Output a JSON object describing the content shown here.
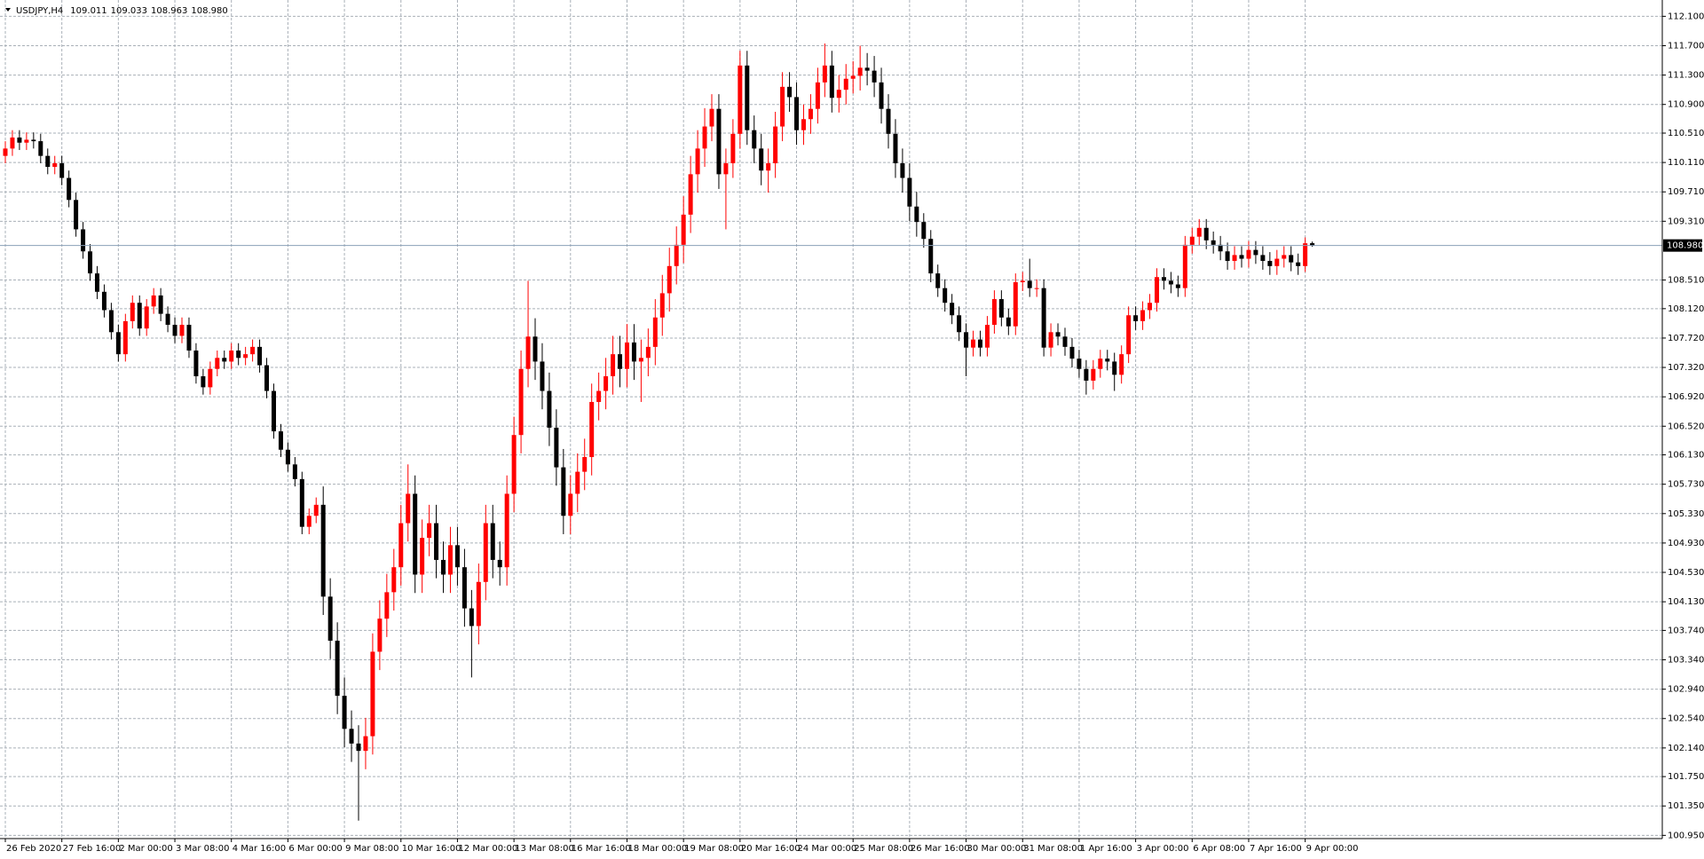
{
  "chart_data": {
    "type": "candlestick",
    "title": "USDJPY,H4",
    "up_color": "#ff0000",
    "down_color": "#000000",
    "grid": true,
    "current_price": {
      "value": 108.98,
      "label": "108.980"
    },
    "current_price_color": "#8aa0b8",
    "ylim": [
      100.906,
      112.322
    ],
    "yticks": [
      {
        "value": 112.1,
        "label": "112.100"
      },
      {
        "value": 111.7,
        "label": "111.700"
      },
      {
        "value": 111.3,
        "label": "111.300"
      },
      {
        "value": 110.9,
        "label": "110.900"
      },
      {
        "value": 110.51,
        "label": "110.510"
      },
      {
        "value": 110.11,
        "label": "110.110"
      },
      {
        "value": 109.71,
        "label": "109.710"
      },
      {
        "value": 109.31,
        "label": "109.310"
      },
      {
        "value": 108.51,
        "label": "108.510"
      },
      {
        "value": 108.12,
        "label": "108.120"
      },
      {
        "value": 107.72,
        "label": "107.720"
      },
      {
        "value": 107.32,
        "label": "107.320"
      },
      {
        "value": 106.92,
        "label": "106.920"
      },
      {
        "value": 106.52,
        "label": "106.520"
      },
      {
        "value": 106.13,
        "label": "106.130"
      },
      {
        "value": 105.73,
        "label": "105.730"
      },
      {
        "value": 105.33,
        "label": "105.330"
      },
      {
        "value": 104.93,
        "label": "104.930"
      },
      {
        "value": 104.53,
        "label": "104.530"
      },
      {
        "value": 104.13,
        "label": "104.130"
      },
      {
        "value": 103.74,
        "label": "103.740"
      },
      {
        "value": 103.34,
        "label": "103.340"
      },
      {
        "value": 102.94,
        "label": "102.940"
      },
      {
        "value": 102.54,
        "label": "102.540"
      },
      {
        "value": 102.14,
        "label": "102.140"
      },
      {
        "value": 101.75,
        "label": "101.750"
      },
      {
        "value": 101.35,
        "label": "101.350"
      },
      {
        "value": 100.95,
        "label": "100.950"
      }
    ],
    "xticks": [
      {
        "value": 0,
        "label": "26 Feb 2020"
      },
      {
        "value": 8,
        "label": "27 Feb 16:00"
      },
      {
        "value": 16,
        "label": "2 Mar 00:00"
      },
      {
        "value": 24,
        "label": "3 Mar 08:00"
      },
      {
        "value": 32,
        "label": "4 Mar 16:00"
      },
      {
        "value": 40,
        "label": "6 Mar 00:00"
      },
      {
        "value": 48,
        "label": "9 Mar 08:00"
      },
      {
        "value": 56,
        "label": "10 Mar 16:00"
      },
      {
        "value": 64,
        "label": "12 Mar 00:00"
      },
      {
        "value": 72,
        "label": "13 Mar 08:00"
      },
      {
        "value": 80,
        "label": "16 Mar 16:00"
      },
      {
        "value": 88,
        "label": "18 Mar 00:00"
      },
      {
        "value": 96,
        "label": "19 Mar 08:00"
      },
      {
        "value": 104,
        "label": "20 Mar 16:00"
      },
      {
        "value": 112,
        "label": "24 Mar 00:00"
      },
      {
        "value": 120,
        "label": "25 Mar 08:00"
      },
      {
        "value": 128,
        "label": "26 Mar 16:00"
      },
      {
        "value": 136,
        "label": "30 Mar 00:00"
      },
      {
        "value": 144,
        "label": "31 Mar 08:00"
      },
      {
        "value": 152,
        "label": "1 Apr 16:00"
      },
      {
        "value": 160,
        "label": "3 Apr 00:00"
      },
      {
        "value": 168,
        "label": "6 Apr 08:00"
      },
      {
        "value": 176,
        "label": "7 Apr 16:00"
      },
      {
        "value": 184,
        "label": "9 Apr 00:00"
      }
    ],
    "open": [
      110.2,
      110.3,
      110.45,
      110.38,
      110.42,
      110.4,
      110.2,
      110.05,
      110.1,
      109.9,
      109.6,
      109.2,
      108.9,
      108.6,
      108.35,
      108.1,
      107.8,
      107.5,
      107.95,
      108.2,
      107.85,
      108.15,
      108.3,
      108.05,
      107.9,
      107.75,
      107.9,
      107.55,
      107.2,
      107.05,
      107.3,
      107.45,
      107.4,
      107.55,
      107.45,
      107.5,
      107.6,
      107.35,
      107.0,
      106.45,
      106.2,
      106.0,
      105.8,
      105.15,
      105.3,
      105.45,
      104.2,
      103.6,
      102.85,
      102.4,
      102.2,
      102.1,
      102.3,
      103.45,
      103.9,
      104.26,
      104.6,
      105.2,
      105.6,
      104.5,
      105.0,
      105.2,
      104.7,
      104.5,
      104.9,
      104.6,
      104.04,
      103.8,
      104.4,
      105.2,
      104.7,
      104.6,
      105.6,
      106.4,
      107.3,
      107.74,
      107.4,
      107.0,
      106.5,
      105.96,
      105.3,
      105.6,
      105.9,
      106.1,
      106.85,
      107.0,
      107.2,
      107.5,
      107.3,
      107.66,
      107.4,
      107.45,
      107.6,
      108.0,
      108.33,
      108.7,
      108.99,
      109.4,
      109.95,
      110.3,
      110.6,
      110.84,
      109.95,
      110.1,
      110.5,
      111.43,
      110.55,
      110.3,
      110.0,
      110.1,
      110.6,
      111.14,
      111.0,
      110.55,
      110.7,
      110.84,
      111.2,
      111.43,
      110.99,
      111.1,
      111.25,
      111.29,
      111.4,
      111.36,
      111.2,
      110.84,
      110.5,
      110.1,
      109.9,
      109.51,
      109.3,
      109.07,
      108.6,
      108.4,
      108.2,
      108.03,
      107.8,
      107.59,
      107.7,
      107.59,
      107.9,
      108.25,
      108.0,
      107.88,
      108.48,
      108.5,
      108.4,
      108.4,
      107.59,
      107.8,
      107.74,
      107.6,
      107.44,
      107.3,
      107.14,
      107.3,
      107.44,
      107.4,
      107.22,
      107.5,
      108.03,
      107.95,
      108.1,
      108.2,
      108.55,
      108.5,
      108.45,
      108.4,
      108.99,
      109.1,
      109.22,
      109.05,
      108.99,
      108.9,
      108.77,
      108.85,
      108.8,
      108.92,
      108.85,
      108.77,
      108.7,
      108.8,
      108.85,
      108.75,
      108.7,
      109.011
    ],
    "high": [
      110.4,
      110.55,
      110.55,
      110.52,
      110.52,
      110.5,
      110.3,
      110.2,
      110.2,
      110.0,
      109.7,
      109.3,
      109.0,
      108.7,
      108.45,
      108.2,
      107.9,
      108.05,
      108.3,
      108.3,
      108.25,
      108.4,
      108.4,
      108.15,
      108.0,
      108.0,
      108.0,
      107.65,
      107.3,
      107.4,
      107.55,
      107.55,
      107.65,
      107.65,
      107.6,
      107.7,
      107.7,
      107.45,
      107.1,
      106.55,
      106.3,
      106.1,
      105.9,
      105.4,
      105.55,
      105.7,
      104.45,
      103.85,
      103.1,
      102.65,
      102.45,
      102.55,
      103.7,
      104.15,
      104.51,
      104.85,
      105.45,
      106.0,
      105.85,
      105.25,
      105.45,
      105.45,
      104.95,
      105.15,
      105.15,
      104.85,
      104.29,
      104.65,
      105.45,
      105.45,
      104.95,
      105.85,
      106.65,
      107.55,
      108.5,
      107.99,
      107.65,
      107.25,
      106.75,
      106.21,
      105.85,
      106.15,
      106.35,
      107.1,
      107.25,
      107.45,
      107.75,
      107.75,
      107.91,
      107.91,
      107.7,
      107.85,
      108.25,
      108.58,
      108.95,
      109.24,
      109.65,
      110.2,
      110.55,
      110.85,
      111.04,
      111.04,
      110.3,
      110.7,
      111.63,
      111.63,
      110.75,
      110.5,
      110.3,
      110.8,
      111.34,
      111.34,
      111.2,
      110.9,
      111.04,
      111.4,
      111.73,
      111.63,
      111.3,
      111.45,
      111.49,
      111.7,
      111.6,
      111.56,
      111.4,
      111.04,
      110.7,
      110.3,
      110.1,
      109.71,
      109.42,
      109.19,
      108.72,
      108.52,
      108.32,
      108.15,
      107.92,
      107.82,
      107.82,
      108.02,
      108.37,
      108.37,
      108.12,
      108.6,
      108.62,
      108.8,
      108.52,
      108.52,
      107.92,
      107.92,
      107.86,
      107.72,
      107.56,
      107.42,
      107.42,
      107.56,
      107.56,
      107.52,
      107.62,
      108.15,
      108.15,
      108.22,
      108.32,
      108.67,
      108.67,
      108.62,
      108.57,
      109.11,
      109.22,
      109.34,
      109.34,
      109.17,
      109.11,
      109.02,
      108.97,
      108.97,
      109.04,
      109.04,
      108.97,
      108.89,
      108.92,
      108.97,
      108.97,
      108.87,
      109.09,
      109.033
    ],
    "low": [
      110.1,
      110.2,
      110.28,
      110.28,
      110.3,
      110.1,
      109.95,
      109.95,
      109.8,
      109.5,
      109.1,
      108.8,
      108.5,
      108.25,
      108.0,
      107.7,
      107.4,
      107.4,
      107.85,
      107.75,
      107.75,
      108.05,
      107.95,
      107.8,
      107.65,
      107.65,
      107.45,
      107.1,
      106.95,
      106.95,
      107.2,
      107.3,
      107.3,
      107.35,
      107.35,
      107.4,
      107.25,
      106.9,
      106.35,
      106.1,
      105.9,
      105.7,
      105.05,
      105.05,
      105.2,
      103.95,
      103.35,
      102.6,
      102.15,
      101.95,
      101.15,
      101.85,
      102.05,
      103.2,
      103.65,
      104.01,
      104.35,
      104.95,
      104.25,
      104.25,
      104.75,
      104.45,
      104.25,
      104.25,
      104.35,
      103.79,
      103.1,
      103.55,
      104.15,
      104.45,
      104.35,
      104.35,
      105.35,
      106.15,
      107.05,
      107.15,
      106.75,
      106.25,
      105.71,
      105.05,
      105.05,
      105.35,
      105.65,
      105.85,
      106.6,
      106.75,
      106.95,
      107.05,
      107.05,
      107.15,
      106.85,
      107.2,
      107.35,
      107.75,
      108.08,
      108.45,
      108.74,
      109.15,
      109.7,
      110.05,
      110.4,
      109.75,
      109.2,
      109.9,
      110.3,
      110.35,
      110.1,
      109.8,
      109.7,
      109.9,
      110.4,
      110.8,
      110.35,
      110.35,
      110.5,
      110.64,
      111.0,
      110.79,
      110.79,
      110.9,
      111.05,
      111.09,
      111.16,
      111.0,
      110.64,
      110.3,
      109.9,
      109.7,
      109.31,
      109.1,
      108.95,
      108.48,
      108.28,
      108.08,
      107.91,
      107.68,
      107.2,
      107.47,
      107.47,
      107.47,
      107.78,
      107.88,
      107.76,
      107.76,
      108.36,
      108.28,
      108.28,
      107.47,
      107.47,
      107.62,
      107.48,
      107.32,
      107.18,
      106.95,
      107.02,
      107.18,
      107.28,
      107.0,
      107.1,
      107.38,
      107.83,
      107.83,
      107.98,
      108.08,
      108.38,
      108.33,
      108.28,
      108.28,
      108.87,
      108.98,
      108.93,
      108.87,
      108.78,
      108.65,
      108.65,
      108.68,
      108.68,
      108.73,
      108.65,
      108.58,
      108.58,
      108.68,
      108.63,
      108.58,
      108.62,
      108.963
    ],
    "close": [
      110.3,
      110.45,
      110.38,
      110.42,
      110.4,
      110.2,
      110.05,
      110.1,
      109.9,
      109.6,
      109.2,
      108.9,
      108.6,
      108.35,
      108.1,
      107.8,
      107.5,
      107.95,
      108.2,
      107.85,
      108.15,
      108.3,
      108.05,
      107.9,
      107.75,
      107.9,
      107.55,
      107.2,
      107.05,
      107.3,
      107.45,
      107.4,
      107.55,
      107.45,
      107.5,
      107.6,
      107.35,
      107.0,
      106.45,
      106.2,
      106.0,
      105.8,
      105.15,
      105.3,
      105.45,
      104.2,
      103.6,
      102.85,
      102.4,
      102.2,
      102.1,
      102.3,
      103.45,
      103.9,
      104.26,
      104.6,
      105.2,
      105.6,
      104.5,
      105.0,
      105.2,
      104.7,
      104.5,
      104.9,
      104.6,
      104.04,
      103.8,
      104.4,
      105.2,
      104.7,
      104.6,
      105.6,
      106.4,
      107.3,
      107.74,
      107.4,
      107.0,
      106.5,
      105.96,
      105.3,
      105.6,
      105.9,
      106.1,
      106.85,
      107.0,
      107.2,
      107.5,
      107.3,
      107.66,
      107.4,
      107.45,
      107.6,
      108.0,
      108.33,
      108.7,
      108.99,
      109.4,
      109.95,
      110.3,
      110.6,
      110.84,
      109.95,
      110.1,
      110.5,
      111.43,
      110.55,
      110.3,
      110.0,
      110.1,
      110.6,
      111.14,
      111.0,
      110.55,
      110.7,
      110.84,
      111.2,
      111.43,
      110.99,
      111.1,
      111.25,
      111.29,
      111.4,
      111.36,
      111.2,
      110.84,
      110.5,
      110.1,
      109.9,
      109.51,
      109.3,
      109.07,
      108.6,
      108.4,
      108.2,
      108.03,
      107.8,
      107.59,
      107.7,
      107.59,
      107.9,
      108.25,
      108.0,
      107.88,
      108.48,
      108.5,
      108.4,
      108.4,
      107.59,
      107.8,
      107.74,
      107.6,
      107.44,
      107.3,
      107.14,
      107.3,
      107.44,
      107.4,
      107.22,
      107.5,
      108.03,
      107.95,
      108.1,
      108.2,
      108.55,
      108.5,
      108.45,
      108.4,
      108.99,
      109.1,
      109.22,
      109.05,
      108.99,
      108.9,
      108.77,
      108.85,
      108.8,
      108.92,
      108.85,
      108.77,
      108.7,
      108.8,
      108.85,
      108.75,
      108.7,
      109.01,
      108.98
    ]
  }
}
